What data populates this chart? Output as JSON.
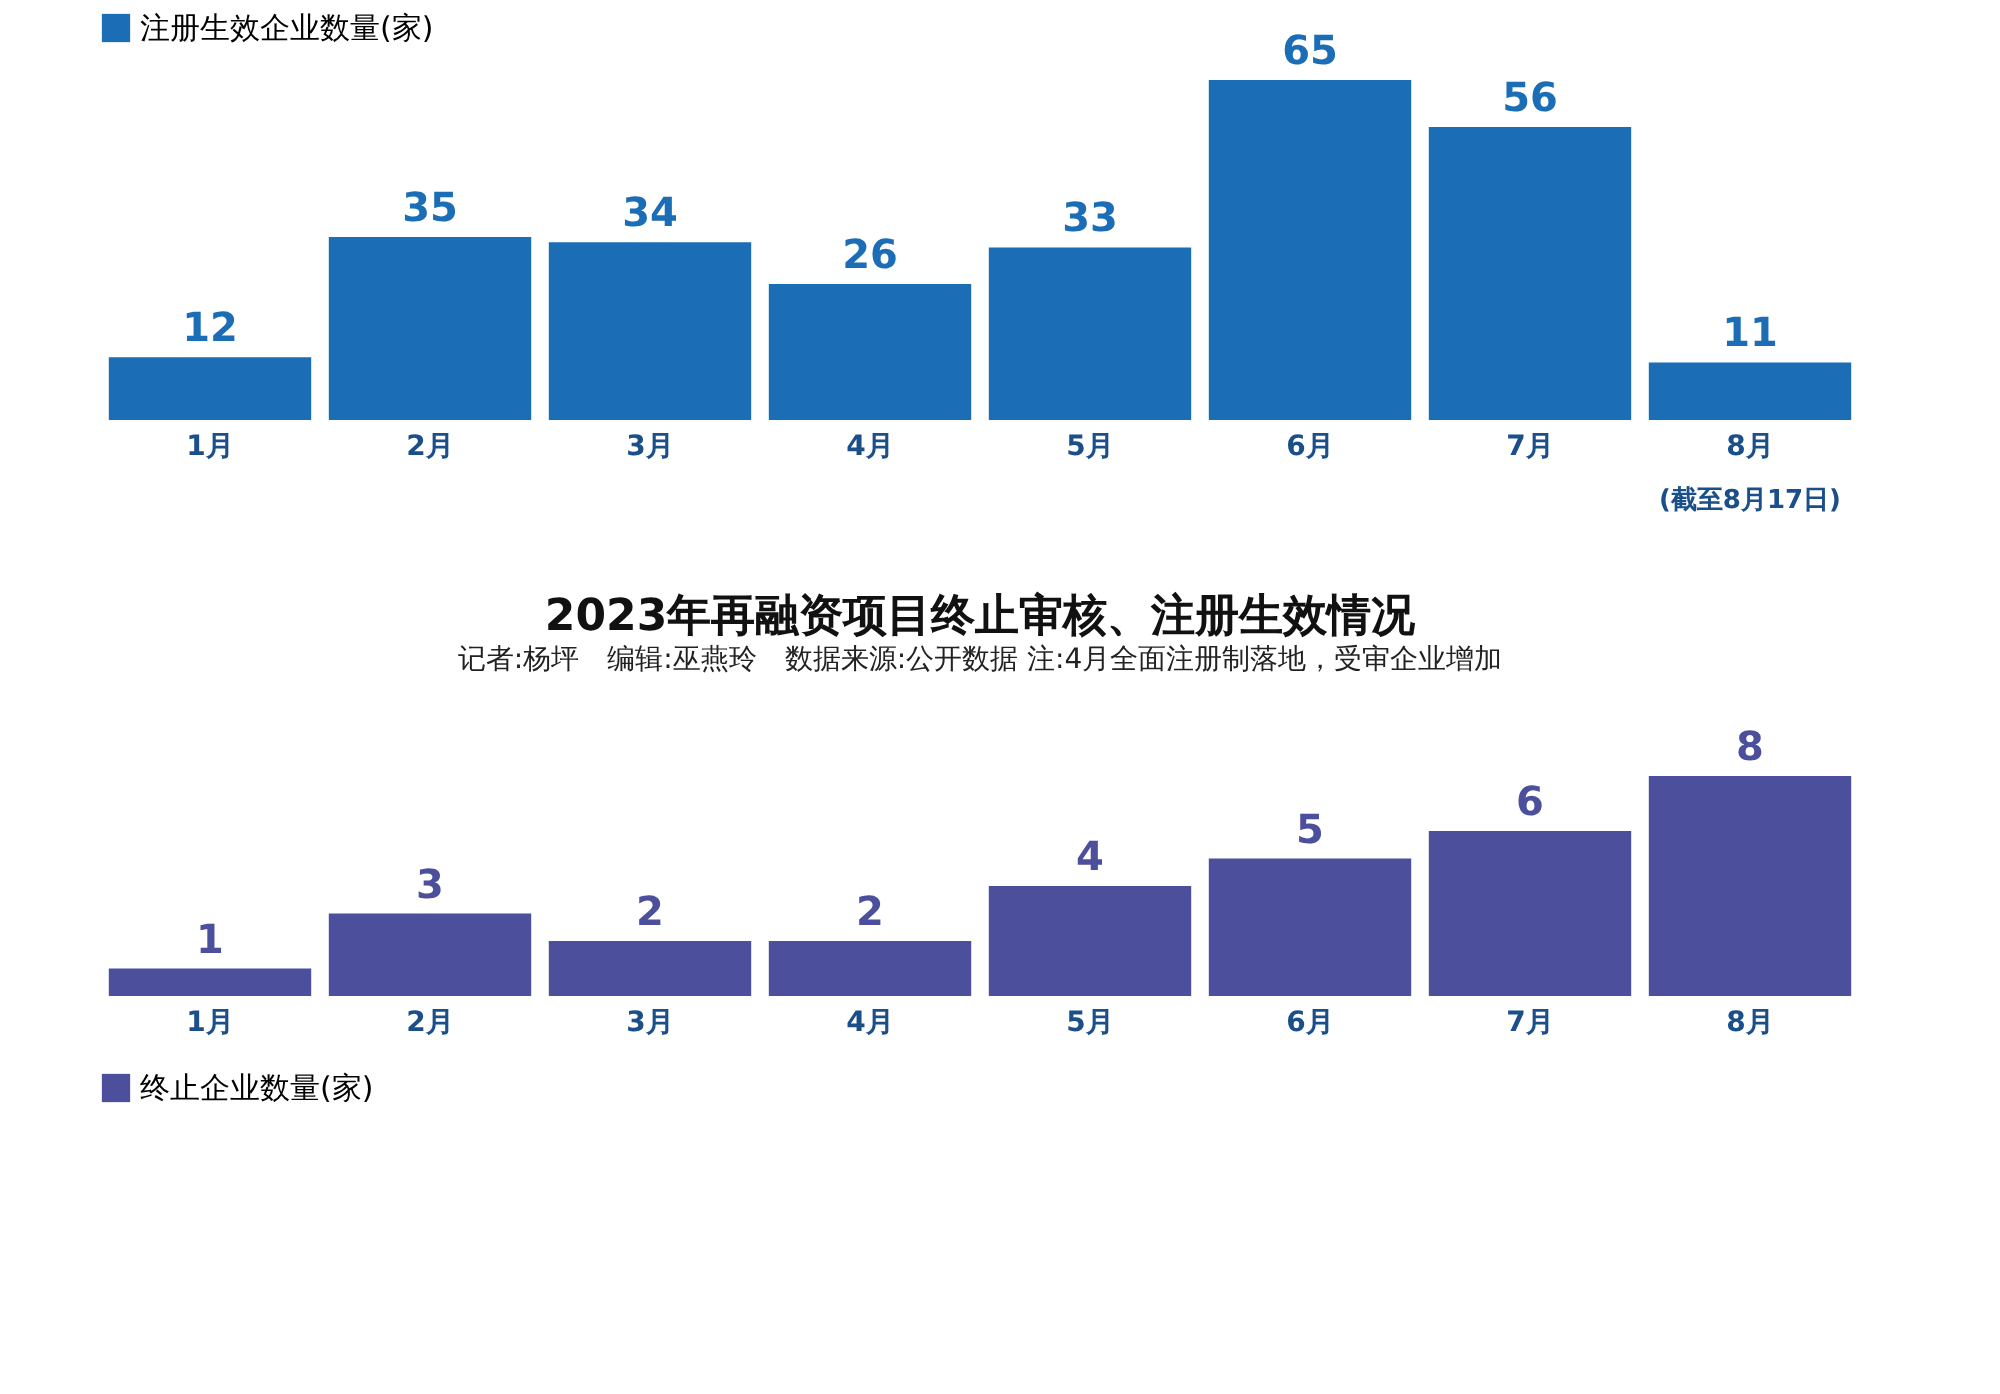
{
  "chart_data": [
    {
      "type": "bar",
      "categories": [
        "1月",
        "2月",
        "3月",
        "4月",
        "5月",
        "6月",
        "7月",
        "8月"
      ],
      "series": [
        {
          "name": "注册生效企业数量(家)",
          "color": "#1b6db5",
          "values": [
            12,
            35,
            34,
            26,
            33,
            65,
            56,
            11
          ]
        }
      ],
      "tick_labels": "x",
      "data_labels": true,
      "legend": "top",
      "annotations": [
        "(截至8月17日)"
      ]
    },
    {
      "type": "bar",
      "title": "2023年再融资项目终止审核、注册生效情况",
      "subtitle": "记者:杨坪　编辑:巫燕玲　数据来源:公开数据  注:4月全面注册制落地，受审企业增加",
      "categories": [
        "1月",
        "2月",
        "3月",
        "4月",
        "5月",
        "6月",
        "7月",
        "8月"
      ],
      "series": [
        {
          "name": "终止企业数量(家)",
          "color": "#4b4f9c",
          "values": [
            1,
            3,
            2,
            2,
            4,
            5,
            6,
            8
          ]
        }
      ],
      "tick_labels": "x",
      "data_labels": true,
      "legend": "bottom"
    }
  ]
}
